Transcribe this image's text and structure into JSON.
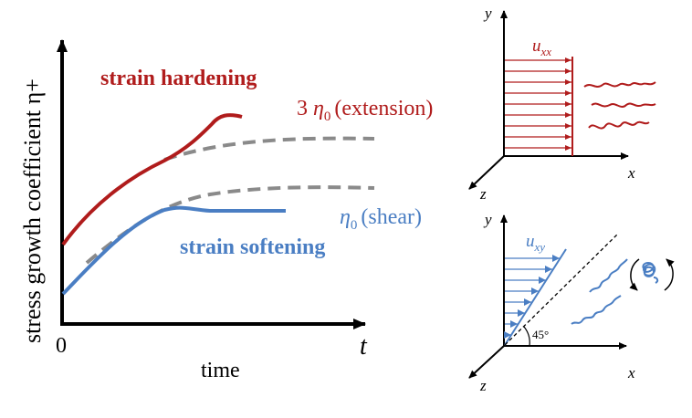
{
  "colors": {
    "red": "#b01c1c",
    "blue": "#4a7ec3",
    "gray": "#8a8a8a",
    "black": "#000000"
  },
  "main_plot": {
    "ylabel": "stress growth coefficient η+",
    "xlabel": "time",
    "origin_label": "0",
    "t_label": "t",
    "hardening_label": "strain hardening",
    "softening_label": "strain softening",
    "extension": {
      "prefix": "3",
      "symbol": "η",
      "sub": "0",
      "suffix": "(extension)"
    },
    "shear": {
      "symbol": "η",
      "sub": "0",
      "suffix": "(shear)"
    }
  },
  "top_diagram": {
    "y_label": "y",
    "x_label": "x",
    "z_label": "z",
    "u_symbol": "u",
    "u_sub": "xx"
  },
  "bottom_diagram": {
    "y_label": "y",
    "x_label": "x",
    "z_label": "z",
    "u_symbol": "u",
    "u_sub": "xy",
    "angle_label": "45°"
  }
}
